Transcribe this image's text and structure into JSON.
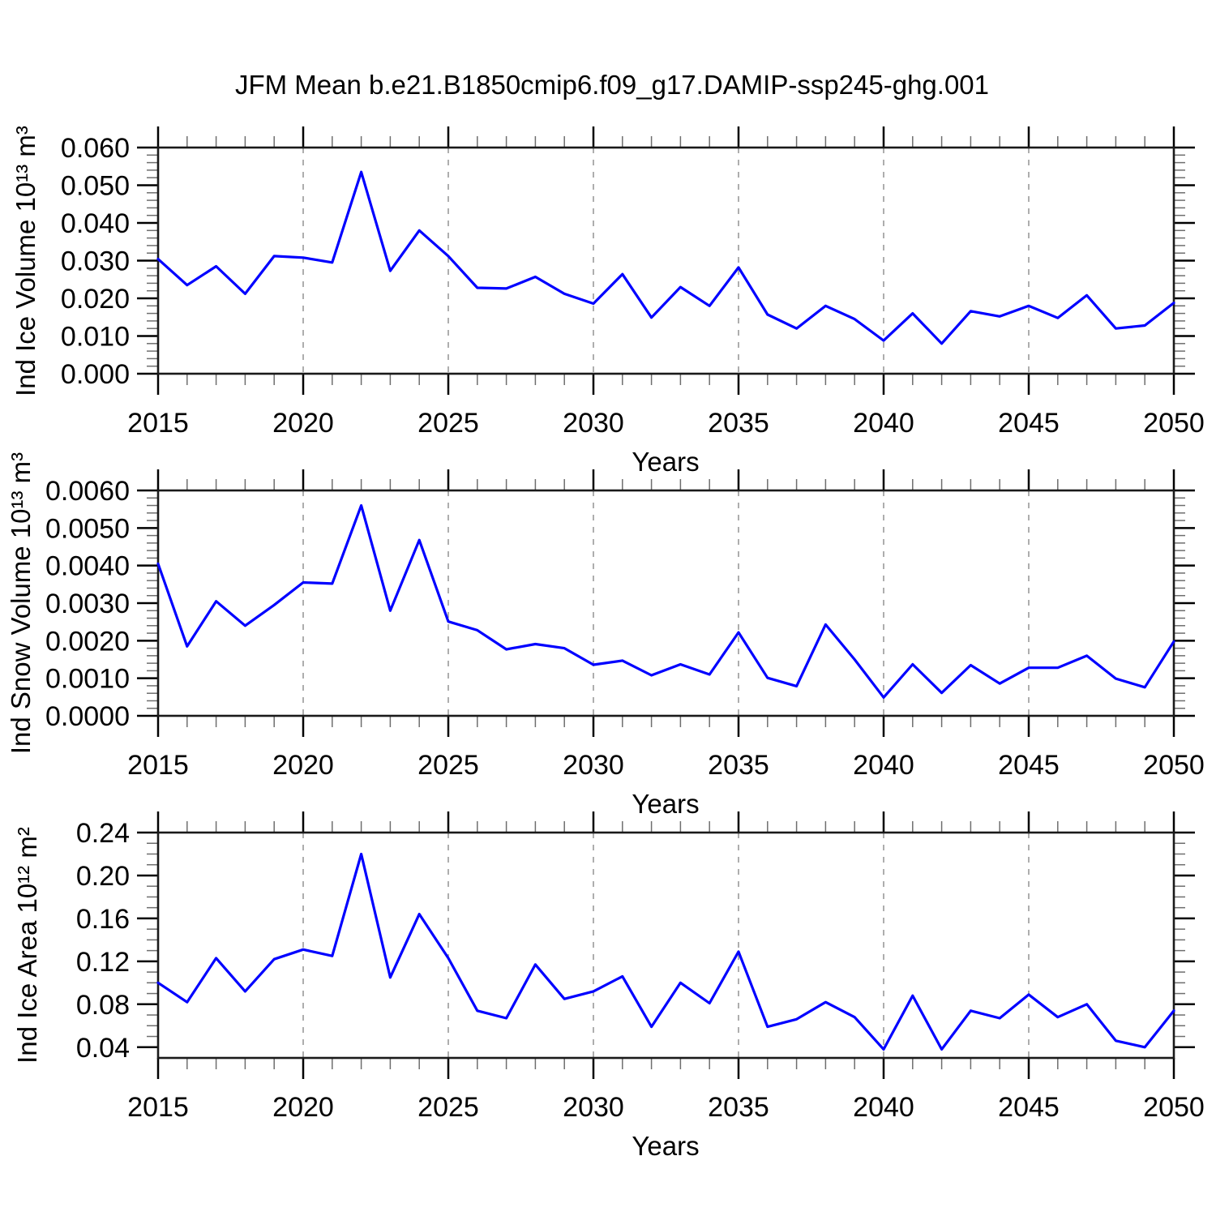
{
  "title": "JFM Mean b.e21.B1850cmip6.f09_g17.DAMIP-ssp245-ghg.001",
  "colors": {
    "line": "#0000ff",
    "axis": "#1a1a1a",
    "major_tick": "#000000",
    "minor_tick": "#6e6e6e",
    "grid": "#9a9a9a",
    "text": "#000000",
    "background": "#ffffff"
  },
  "chart_data": [
    {
      "type": "line",
      "name": "ind-ice-volume",
      "ylabel": "Ind Ice Volume 10¹³ m³",
      "xlabel": "Years",
      "x": [
        2015,
        2016,
        2017,
        2018,
        2019,
        2020,
        2021,
        2022,
        2023,
        2024,
        2025,
        2026,
        2027,
        2028,
        2029,
        2030,
        2031,
        2032,
        2033,
        2034,
        2035,
        2036,
        2037,
        2038,
        2039,
        2040,
        2041,
        2042,
        2043,
        2044,
        2045,
        2046,
        2047,
        2048,
        2049,
        2050
      ],
      "values": [
        0.0304,
        0.0235,
        0.0285,
        0.0212,
        0.0312,
        0.0308,
        0.0295,
        0.0535,
        0.0273,
        0.038,
        0.0312,
        0.0228,
        0.0226,
        0.0257,
        0.0212,
        0.0186,
        0.0264,
        0.0149,
        0.023,
        0.018,
        0.0282,
        0.0157,
        0.012,
        0.018,
        0.0145,
        0.0088,
        0.016,
        0.008,
        0.0166,
        0.0152,
        0.018,
        0.0148,
        0.0208,
        0.012,
        0.0128,
        0.0188
      ],
      "xlim": [
        2015,
        2050
      ],
      "ylim": [
        0.0,
        0.06
      ],
      "ytick_values": [
        0.0,
        0.01,
        0.02,
        0.03,
        0.04,
        0.05,
        0.06
      ],
      "ytick_labels": [
        "0.000",
        "0.010",
        "0.020",
        "0.030",
        "0.040",
        "0.050",
        "0.060"
      ],
      "yminor_step": 0.002,
      "xtick_major": [
        2015,
        2020,
        2025,
        2030,
        2035,
        2040,
        2045,
        2050
      ],
      "xminor_step": 1,
      "xgrid_years": [
        2020,
        2025,
        2030,
        2035,
        2040,
        2045
      ],
      "grid_style": "vertical-dashed",
      "legend": "none"
    },
    {
      "type": "line",
      "name": "ind-snow-volume",
      "ylabel": "Ind Snow Volume 10¹³ m³",
      "xlabel": "Years",
      "x": [
        2015,
        2016,
        2017,
        2018,
        2019,
        2020,
        2021,
        2022,
        2023,
        2024,
        2025,
        2026,
        2027,
        2028,
        2029,
        2030,
        2031,
        2032,
        2033,
        2034,
        2035,
        2036,
        2037,
        2038,
        2039,
        2040,
        2041,
        2042,
        2043,
        2044,
        2045,
        2046,
        2047,
        2048,
        2049,
        2050
      ],
      "values": [
        0.00405,
        0.00185,
        0.00305,
        0.0024,
        0.00295,
        0.00355,
        0.00352,
        0.0056,
        0.0028,
        0.00468,
        0.00251,
        0.00228,
        0.00177,
        0.00191,
        0.0018,
        0.00136,
        0.00147,
        0.00108,
        0.00137,
        0.0011,
        0.00222,
        0.00101,
        0.00079,
        0.00243,
        0.0015,
        0.00049,
        0.00137,
        0.00061,
        0.00135,
        0.00086,
        0.00128,
        0.00128,
        0.0016,
        0.00099,
        0.00076,
        0.00198
      ],
      "xlim": [
        2015,
        2050
      ],
      "ylim": [
        0.0,
        0.006
      ],
      "ytick_values": [
        0.0,
        0.001,
        0.002,
        0.003,
        0.004,
        0.005,
        0.006
      ],
      "ytick_labels": [
        "0.0000",
        "0.0010",
        "0.0020",
        "0.0030",
        "0.0040",
        "0.0050",
        "0.0060"
      ],
      "yminor_step": 0.0002,
      "xtick_major": [
        2015,
        2020,
        2025,
        2030,
        2035,
        2040,
        2045,
        2050
      ],
      "xminor_step": 1,
      "xgrid_years": [
        2020,
        2025,
        2030,
        2035,
        2040,
        2045
      ],
      "grid_style": "vertical-dashed",
      "legend": "none"
    },
    {
      "type": "line",
      "name": "ind-ice-area",
      "ylabel": "Ind Ice Area 10¹² m²",
      "xlabel": "Years",
      "x": [
        2015,
        2016,
        2017,
        2018,
        2019,
        2020,
        2021,
        2022,
        2023,
        2024,
        2025,
        2026,
        2027,
        2028,
        2029,
        2030,
        2031,
        2032,
        2033,
        2034,
        2035,
        2036,
        2037,
        2038,
        2039,
        2040,
        2041,
        2042,
        2043,
        2044,
        2045,
        2046,
        2047,
        2048,
        2049,
        2050
      ],
      "values": [
        0.1,
        0.082,
        0.123,
        0.092,
        0.122,
        0.131,
        0.125,
        0.22,
        0.105,
        0.164,
        0.123,
        0.074,
        0.067,
        0.117,
        0.085,
        0.092,
        0.106,
        0.059,
        0.1,
        0.081,
        0.129,
        0.059,
        0.066,
        0.082,
        0.068,
        0.038,
        0.088,
        0.038,
        0.074,
        0.067,
        0.089,
        0.068,
        0.08,
        0.046,
        0.04,
        0.074
      ],
      "xlim": [
        2015,
        2050
      ],
      "ylim": [
        0.03,
        0.24
      ],
      "ytick_values": [
        0.04,
        0.08,
        0.12,
        0.16,
        0.2,
        0.24
      ],
      "ytick_labels": [
        "0.04",
        "0.08",
        "0.12",
        "0.16",
        "0.20",
        "0.24"
      ],
      "yminor_step": 0.01,
      "xtick_major": [
        2015,
        2020,
        2025,
        2030,
        2035,
        2040,
        2045,
        2050
      ],
      "xminor_step": 1,
      "xgrid_years": [
        2020,
        2025,
        2030,
        2035,
        2040,
        2045
      ],
      "grid_style": "vertical-dashed",
      "legend": "none"
    }
  ]
}
